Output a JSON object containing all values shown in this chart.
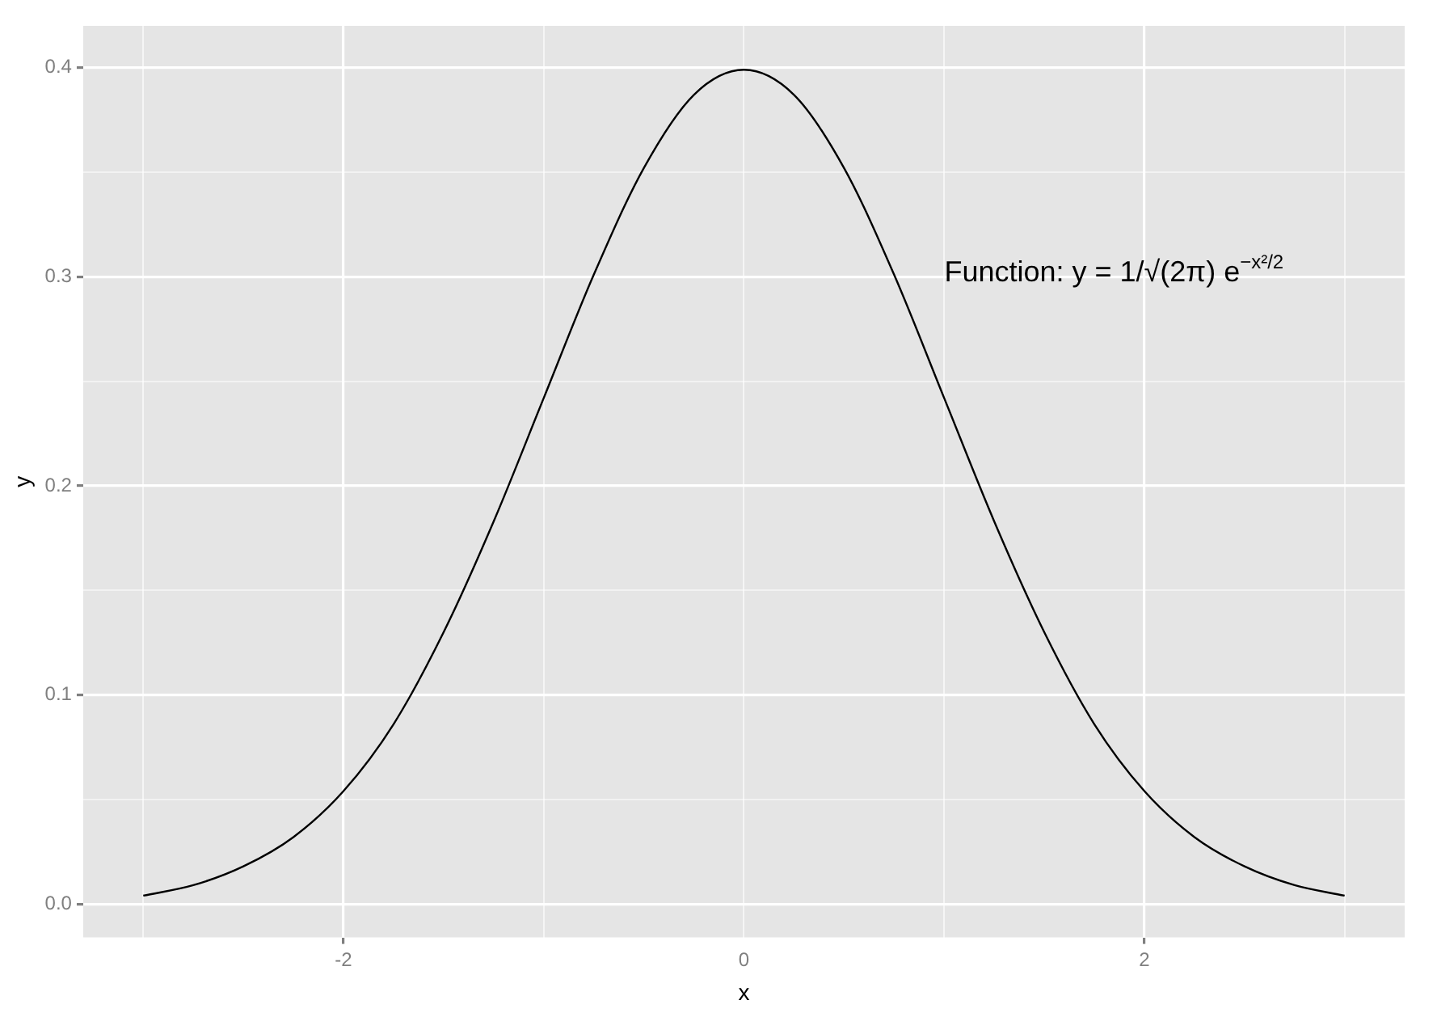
{
  "chart_data": {
    "type": "line",
    "xlabel": "x",
    "ylabel": "y",
    "annotations": [
      "Function: y = 1/√(2π) e$^{−x²/2}$"
    ],
    "x": [
      -3,
      -2.75,
      -2.5,
      -2.25,
      -2,
      -1.75,
      -1.5,
      -1.25,
      -1,
      -0.75,
      -0.5,
      -0.25,
      0,
      0.25,
      0.5,
      0.75,
      1,
      1.25,
      1.5,
      1.75,
      2,
      2.25,
      2.5,
      2.75,
      3
    ],
    "series": [
      {
        "color": "#000000",
        "values": [
          0.004,
          0.009,
          0.018,
          0.032,
          0.054,
          0.086,
          0.13,
          0.183,
          0.242,
          0.301,
          0.352,
          0.387,
          0.399,
          0.387,
          0.352,
          0.301,
          0.242,
          0.183,
          0.13,
          0.086,
          0.054,
          0.032,
          0.018,
          0.009,
          0.004
        ]
      }
    ],
    "xlim": [
      -3.3,
      3.3
    ],
    "ylim": [
      -0.016,
      0.42
    ],
    "xticks": [
      {
        "value": -3,
        "label": null
      },
      -2,
      {
        "value": -1,
        "label": null
      },
      0,
      {
        "value": 1,
        "label": null
      },
      2,
      {
        "value": 3,
        "label": null
      }
    ],
    "yticks": [
      {
        "value": 0,
        "label": "0.0"
      },
      {
        "value": 0.05,
        "label": null
      },
      0.1,
      {
        "value": 0.15,
        "label": null
      },
      0.2,
      {
        "value": 0.25,
        "label": null
      },
      0.3,
      {
        "value": 0.35,
        "label": null
      },
      0.4
    ],
    "grid": true,
    "legend": false,
    "marker": "none",
    "line_style": "solid"
  }
}
